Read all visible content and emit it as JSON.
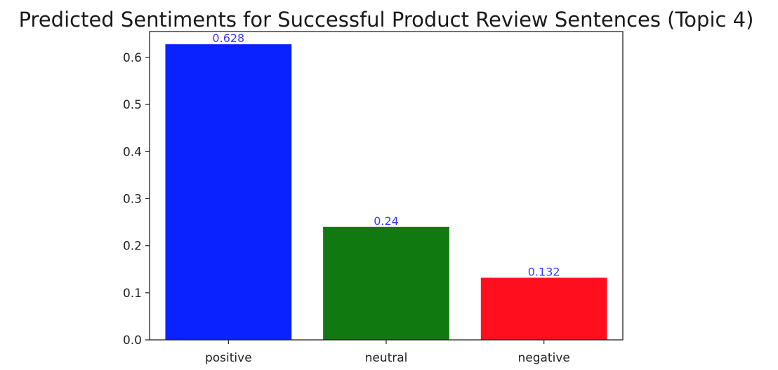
{
  "chart_data": {
    "type": "bar",
    "title": "Predicted Sentiments for Successful Product Review Sentences (Topic 4)",
    "xlabel": "",
    "ylabel": "",
    "categories": [
      "positive",
      "neutral",
      "negative"
    ],
    "values": [
      0.628,
      0.24,
      0.132
    ],
    "data_labels": [
      "0.628",
      "0.24",
      "0.132"
    ],
    "bar_colors": [
      "#0a22ff",
      "#107a10",
      "#ff0f1e"
    ],
    "data_label_color": "#3a3aff",
    "ylim": [
      0,
      0.655
    ],
    "yticks": [
      0.0,
      0.1,
      0.2,
      0.3,
      0.4,
      0.5,
      0.6
    ],
    "ytick_labels": [
      "0.0",
      "0.1",
      "0.2",
      "0.3",
      "0.4",
      "0.5",
      "0.6"
    ],
    "grid": false,
    "legend": "none"
  }
}
